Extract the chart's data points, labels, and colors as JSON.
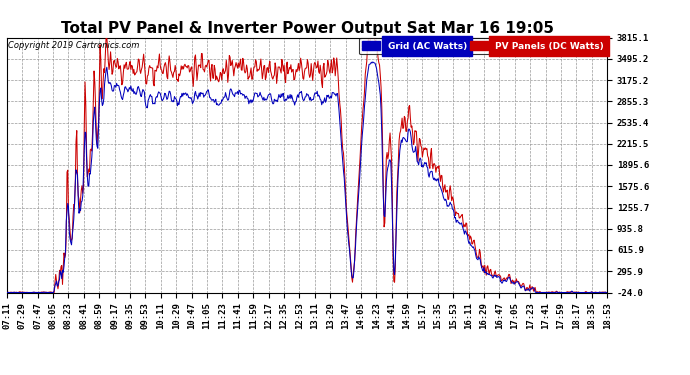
{
  "title": "Total PV Panel & Inverter Power Output Sat Mar 16 19:05",
  "copyright": "Copyright 2019 Cartronics.com",
  "legend_items": [
    {
      "label": "Grid (AC Watts)",
      "color": "#0000bb"
    },
    {
      "label": "PV Panels (DC Watts)",
      "color": "#cc0000"
    }
  ],
  "yticks": [
    -24.0,
    295.9,
    615.9,
    935.8,
    1255.7,
    1575.6,
    1895.6,
    2215.5,
    2535.4,
    2855.3,
    3175.2,
    3495.2,
    3815.1
  ],
  "ymin": -24.0,
  "ymax": 3815.1,
  "background_color": "#ffffff",
  "grid_color": "#999999",
  "title_fontsize": 11,
  "tick_fontsize": 6.5,
  "xtick_labels": [
    "07:11",
    "07:29",
    "07:47",
    "08:05",
    "08:23",
    "08:41",
    "08:59",
    "09:17",
    "09:35",
    "09:53",
    "10:11",
    "10:29",
    "10:47",
    "11:05",
    "11:23",
    "11:41",
    "11:59",
    "12:17",
    "12:35",
    "12:53",
    "13:11",
    "13:29",
    "13:47",
    "14:05",
    "14:23",
    "14:41",
    "14:59",
    "15:17",
    "15:35",
    "15:53",
    "16:11",
    "16:29",
    "16:47",
    "17:05",
    "17:23",
    "17:41",
    "17:59",
    "18:17",
    "18:35",
    "18:53"
  ]
}
